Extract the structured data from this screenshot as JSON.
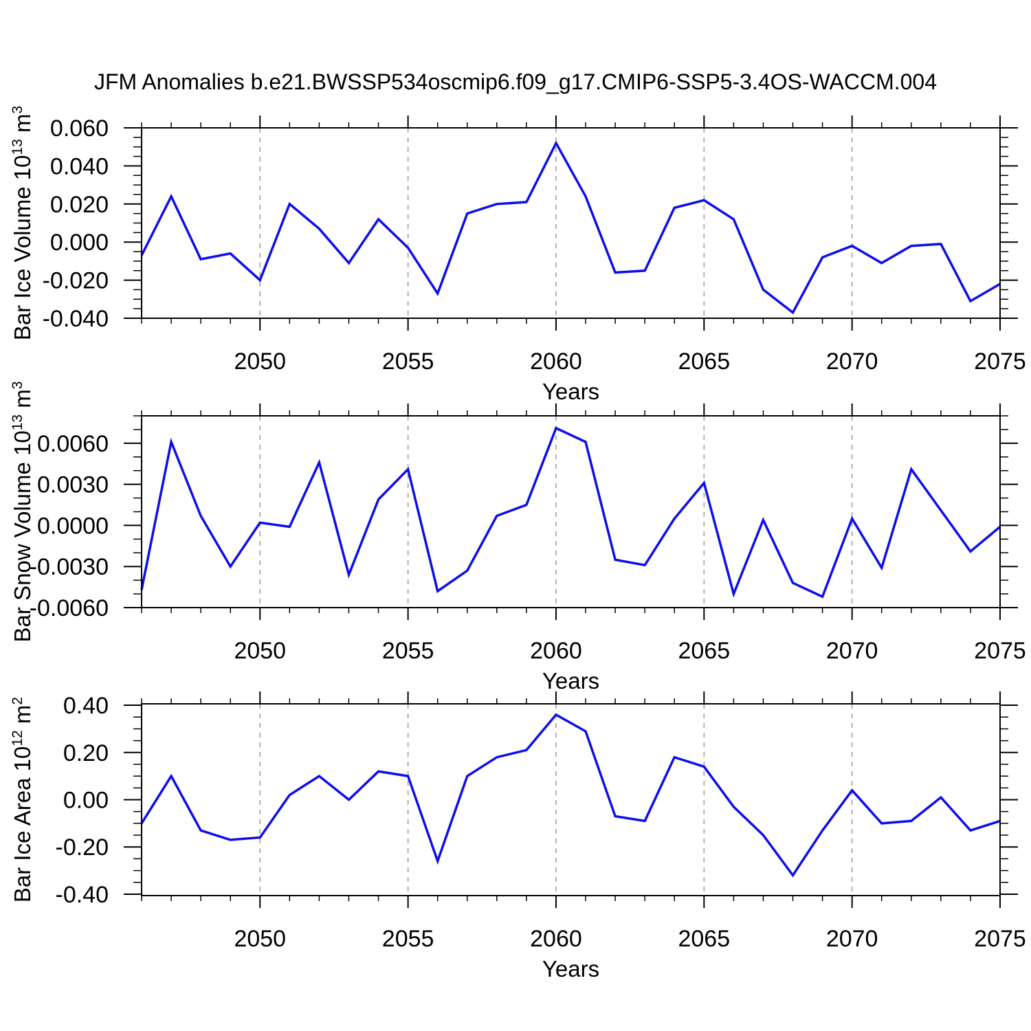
{
  "title": "JFM Anomalies b.e21.BWSSP534oscmip6.f09_g17.CMIP6-SSP5-3.4OS-WACCM.004",
  "palette": {
    "line_color": "#0d0dee",
    "grid_color": "#999999",
    "frame_color": "#000000",
    "text_color": "#000000",
    "background": "#ffffff"
  },
  "x_axis": {
    "label": "Years",
    "start": 2046,
    "end": 2075,
    "major_ticks": [
      2050,
      2055,
      2060,
      2065,
      2070,
      2075
    ],
    "major_tick_labels": [
      "2050",
      "2055",
      "2060",
      "2065",
      "2070",
      "2075"
    ],
    "minor_step": 1,
    "gridlines": [
      2050,
      2055,
      2060,
      2065,
      2070
    ],
    "years": [
      2046,
      2047,
      2048,
      2049,
      2050,
      2051,
      2052,
      2053,
      2054,
      2055,
      2056,
      2057,
      2058,
      2059,
      2060,
      2061,
      2062,
      2063,
      2064,
      2065,
      2066,
      2067,
      2068,
      2069,
      2070,
      2071,
      2072,
      2073,
      2074,
      2075
    ]
  },
  "chart_data": [
    {
      "type": "line",
      "name": "bar-ice-volume",
      "title": "",
      "xlabel": "Years",
      "ylabel": "Bar Ice Volume 10^13 m^3",
      "ylabel_parts": [
        {
          "t": "Bar Ice Volume 10"
        },
        {
          "t": "13",
          "sup": true
        },
        {
          "t": " m"
        },
        {
          "t": "3",
          "sup": true
        }
      ],
      "ylim": [
        -0.04,
        0.06
      ],
      "yticks": [
        -0.04,
        -0.02,
        0.0,
        0.02,
        0.04,
        0.06
      ],
      "ytick_labels": [
        "-0.040",
        "-0.020",
        "0.000",
        "0.020",
        "0.040",
        "0.060"
      ],
      "y_minor_step": 0.005,
      "grid": "x-dashed",
      "legend": "none",
      "values": [
        -0.007,
        0.024,
        -0.009,
        -0.006,
        -0.02,
        0.02,
        0.007,
        -0.011,
        0.012,
        -0.003,
        -0.027,
        0.015,
        0.02,
        0.021,
        0.052,
        0.024,
        -0.016,
        -0.015,
        0.018,
        0.022,
        0.012,
        -0.025,
        -0.037,
        -0.008,
        -0.002,
        -0.011,
        -0.002,
        -0.001,
        -0.031,
        -0.022
      ]
    },
    {
      "type": "line",
      "name": "bar-snow-volume",
      "title": "",
      "xlabel": "Years",
      "ylabel": "Bar Snow Volume 10^13 m^3",
      "ylabel_parts": [
        {
          "t": "Bar Snow Volume 10"
        },
        {
          "t": "13",
          "sup": true
        },
        {
          "t": " m"
        },
        {
          "t": "3",
          "sup": true
        }
      ],
      "ylim": [
        -0.006,
        0.008
      ],
      "yticks": [
        -0.006,
        -0.003,
        0.0,
        0.003,
        0.006
      ],
      "ytick_labels": [
        "-0.0060",
        "-0.0030",
        "0.0000",
        "0.0030",
        "0.0060"
      ],
      "y_minor_step": 0.001,
      "grid": "x-dashed",
      "legend": "none",
      "values": [
        -0.0047,
        0.0061,
        0.0007,
        -0.003,
        0.0002,
        -0.0001,
        0.0046,
        -0.0036,
        0.0019,
        0.0041,
        -0.0048,
        -0.0033,
        0.0007,
        0.0015,
        0.0071,
        0.0061,
        -0.0025,
        -0.0029,
        0.0005,
        0.0031,
        -0.005,
        0.0004,
        -0.0042,
        -0.0052,
        0.0005,
        -0.0031,
        0.0041,
        0.0011,
        -0.0019,
        -0.0001
      ]
    },
    {
      "type": "line",
      "name": "bar-ice-area",
      "title": "",
      "xlabel": "Years",
      "ylabel": "Bar Ice Area 10^12 m^2",
      "ylabel_parts": [
        {
          "t": "Bar Ice Area 10"
        },
        {
          "t": "12",
          "sup": true
        },
        {
          "t": " m"
        },
        {
          "t": "2",
          "sup": true
        }
      ],
      "ylim": [
        -0.406,
        0.406
      ],
      "yticks": [
        -0.4,
        -0.2,
        0.0,
        0.2,
        0.4
      ],
      "ytick_labels": [
        "-0.40",
        "-0.20",
        "0.00",
        "0.20",
        "0.40"
      ],
      "y_minor_step": 0.05,
      "grid": "x-dashed",
      "legend": "none",
      "values": [
        -0.1,
        0.1,
        -0.13,
        -0.17,
        -0.16,
        0.02,
        0.1,
        0.0,
        0.12,
        0.1,
        -0.26,
        0.1,
        0.18,
        0.21,
        0.36,
        0.29,
        -0.07,
        -0.09,
        0.18,
        0.14,
        -0.03,
        -0.15,
        -0.32,
        -0.13,
        0.04,
        -0.1,
        -0.09,
        0.01,
        -0.13,
        -0.09
      ]
    }
  ]
}
